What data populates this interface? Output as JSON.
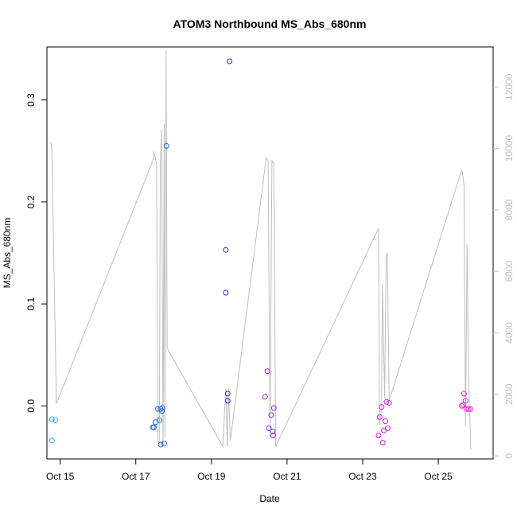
{
  "chart_data": {
    "type": "scatter",
    "title": "ATOM3 Northbound MS_Abs_680nm",
    "xlabel": "Date",
    "ylabel": "MS_Abs_680nm",
    "y2label": "",
    "xlim": [
      14.65,
      26.45
    ],
    "ylim": [
      -0.052,
      0.352
    ],
    "y2lim": [
      -100,
      13300
    ],
    "xticks": [
      {
        "value": 15,
        "label": "Oct 15"
      },
      {
        "value": 17,
        "label": "Oct 17"
      },
      {
        "value": 19,
        "label": "Oct 19"
      },
      {
        "value": 21,
        "label": "Oct 21"
      },
      {
        "value": 23,
        "label": "Oct 23"
      },
      {
        "value": 25,
        "label": "Oct 25"
      }
    ],
    "yticks": [
      {
        "value": 0.0,
        "label": "0.0"
      },
      {
        "value": 0.1,
        "label": "0.1"
      },
      {
        "value": 0.2,
        "label": "0.2"
      },
      {
        "value": 0.3,
        "label": "0.3"
      }
    ],
    "y2ticks": [
      {
        "value": 0,
        "label": "0"
      },
      {
        "value": 2000,
        "label": "2000"
      },
      {
        "value": 4000,
        "label": "4000"
      },
      {
        "value": 6000,
        "label": "6000"
      },
      {
        "value": 8000,
        "label": "8000"
      },
      {
        "value": 10000,
        "label": "10000"
      },
      {
        "value": 12000,
        "label": "12000"
      }
    ],
    "points": [
      {
        "x": 14.78,
        "y": -0.013,
        "color": "#33aaee"
      },
      {
        "x": 14.87,
        "y": -0.014,
        "color": "#33aaee"
      },
      {
        "x": 14.78,
        "y": -0.034,
        "color": "#33aaee"
      },
      {
        "x": 17.45,
        "y": -0.021,
        "color": "#2266dd"
      },
      {
        "x": 17.48,
        "y": -0.021,
        "color": "#2266dd"
      },
      {
        "x": 17.52,
        "y": -0.016,
        "color": "#2266dd"
      },
      {
        "x": 17.58,
        "y": -0.003,
        "color": "#2266dd"
      },
      {
        "x": 17.63,
        "y": -0.014,
        "color": "#2266dd"
      },
      {
        "x": 17.66,
        "y": -0.003,
        "color": "#2266dd"
      },
      {
        "x": 17.69,
        "y": -0.005,
        "color": "#2266dd"
      },
      {
        "x": 17.7,
        "y": -0.002,
        "color": "#2266dd"
      },
      {
        "x": 17.66,
        "y": -0.038,
        "color": "#2266dd"
      },
      {
        "x": 17.75,
        "y": -0.037,
        "color": "#2266dd"
      },
      {
        "x": 17.81,
        "y": 0.255,
        "color": "#2266dd"
      },
      {
        "x": 19.38,
        "y": 0.153,
        "color": "#3322dd"
      },
      {
        "x": 19.38,
        "y": 0.111,
        "color": "#3322dd"
      },
      {
        "x": 19.43,
        "y": 0.012,
        "color": "#3322dd"
      },
      {
        "x": 19.43,
        "y": 0.005,
        "color": "#3322dd"
      },
      {
        "x": 19.48,
        "y": 0.338,
        "color": "#3322dd"
      },
      {
        "x": 20.42,
        "y": 0.009,
        "color": "#9922dd"
      },
      {
        "x": 20.48,
        "y": 0.034,
        "color": "#9922dd"
      },
      {
        "x": 20.52,
        "y": -0.022,
        "color": "#9922dd"
      },
      {
        "x": 20.58,
        "y": -0.009,
        "color": "#9922dd"
      },
      {
        "x": 20.62,
        "y": -0.025,
        "color": "#9922dd"
      },
      {
        "x": 20.63,
        "y": -0.029,
        "color": "#9922dd"
      },
      {
        "x": 20.65,
        "y": -0.002,
        "color": "#9922dd"
      },
      {
        "x": 23.42,
        "y": -0.029,
        "color": "#cc22dd"
      },
      {
        "x": 23.45,
        "y": -0.011,
        "color": "#cc22dd"
      },
      {
        "x": 23.5,
        "y": -0.001,
        "color": "#cc22dd"
      },
      {
        "x": 23.53,
        "y": -0.036,
        "color": "#cc22dd"
      },
      {
        "x": 23.56,
        "y": -0.024,
        "color": "#cc22dd"
      },
      {
        "x": 23.6,
        "y": -0.015,
        "color": "#cc22dd"
      },
      {
        "x": 23.63,
        "y": 0.004,
        "color": "#cc22dd"
      },
      {
        "x": 23.66,
        "y": -0.022,
        "color": "#cc22dd"
      },
      {
        "x": 23.7,
        "y": 0.003,
        "color": "#cc22dd"
      },
      {
        "x": 25.62,
        "y": 0.0,
        "color": "#ee22cc"
      },
      {
        "x": 25.65,
        "y": 0.001,
        "color": "#ee22cc"
      },
      {
        "x": 25.68,
        "y": 0.012,
        "color": "#ee22cc"
      },
      {
        "x": 25.72,
        "y": 0.005,
        "color": "#ee22cc"
      },
      {
        "x": 25.74,
        "y": -0.003,
        "color": "#ee22cc"
      },
      {
        "x": 25.8,
        "y": -0.003,
        "color": "#ee22cc"
      },
      {
        "x": 25.85,
        "y": -0.003,
        "color": "#ee22cc"
      }
    ],
    "secondary_line": {
      "color": "#bebebe",
      "axis": "right",
      "x": [
        14.75,
        14.78,
        14.9,
        17.45,
        17.48,
        17.55,
        17.58,
        17.62,
        17.65,
        17.68,
        17.72,
        17.75,
        17.77,
        17.8,
        17.83,
        19.3,
        19.38,
        19.42,
        19.45,
        19.5,
        20.45,
        20.5,
        20.55,
        20.6,
        20.65,
        20.7,
        23.42,
        23.45,
        23.5,
        23.52,
        23.58,
        23.62,
        23.65,
        23.7,
        25.62,
        25.65,
        25.68,
        25.72,
        25.76,
        25.8,
        25.86
      ],
      "y": [
        10200,
        10000,
        1700,
        9600,
        9900,
        9500,
        500,
        300,
        9500,
        10600,
        300,
        10800,
        600,
        13200,
        3500,
        300,
        2200,
        300,
        2200,
        500,
        9700,
        9600,
        800,
        9600,
        9500,
        300,
        7400,
        1000,
        1600,
        5600,
        1900,
        6500,
        6600,
        1800,
        9300,
        9100,
        8800,
        1000,
        6900,
        2500,
        200
      ]
    },
    "grid": false,
    "legend": "none"
  }
}
